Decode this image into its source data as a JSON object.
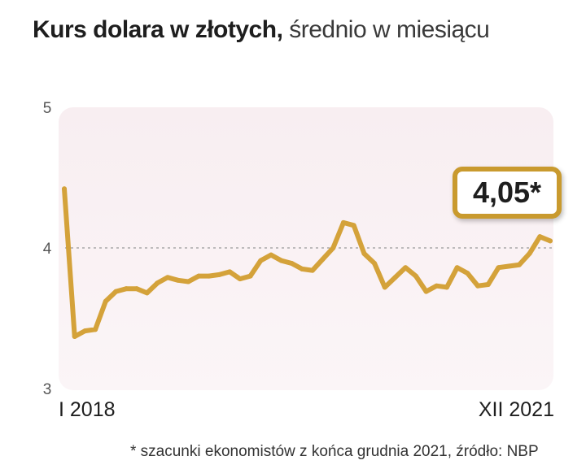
{
  "title": {
    "bold": "Kurs dolara w złotych,",
    "light": "średnio w miesiącu"
  },
  "callout": "4,05*",
  "footnote": "* szacunki ekonomistów z końca grudnia 2021, źródło: NBP",
  "colors": {
    "line": "#d4a23a",
    "plot_bg": "#f9f1f3",
    "badge_border": "#c99a2e"
  },
  "chart_data": {
    "type": "line",
    "title": "Kurs dolara w złotych, średnio w miesiącu",
    "xlabel": "",
    "ylabel": "",
    "ylim": [
      3,
      5
    ],
    "yticks": [
      "3",
      "4",
      "5"
    ],
    "xtick_labels": [
      "I 2018",
      "XII 2021"
    ],
    "reference_line": 4,
    "grid": false,
    "x": [
      "2018-01",
      "2018-02",
      "2018-03",
      "2018-04",
      "2018-05",
      "2018-06",
      "2018-07",
      "2018-08",
      "2018-09",
      "2018-10",
      "2018-11",
      "2018-12",
      "2019-01",
      "2019-02",
      "2019-03",
      "2019-04",
      "2019-05",
      "2019-06",
      "2019-07",
      "2019-08",
      "2019-09",
      "2019-10",
      "2019-11",
      "2019-12",
      "2020-01",
      "2020-02",
      "2020-03",
      "2020-04",
      "2020-05",
      "2020-06",
      "2020-07",
      "2020-08",
      "2020-09",
      "2020-10",
      "2020-11",
      "2020-12",
      "2021-01",
      "2021-02",
      "2021-03",
      "2021-04",
      "2021-05",
      "2021-06",
      "2021-07",
      "2021-08",
      "2021-09",
      "2021-10",
      "2021-11",
      "2021-12"
    ],
    "series": [
      {
        "values": [
          4.42,
          3.37,
          3.41,
          3.42,
          3.62,
          3.69,
          3.71,
          3.71,
          3.68,
          3.75,
          3.79,
          3.77,
          3.76,
          3.8,
          3.8,
          3.81,
          3.83,
          3.78,
          3.8,
          3.91,
          3.95,
          3.91,
          3.89,
          3.85,
          3.84,
          3.92,
          4.0,
          4.18,
          4.16,
          3.96,
          3.89,
          3.72,
          3.79,
          3.86,
          3.8,
          3.69,
          3.73,
          3.72,
          3.86,
          3.82,
          3.73,
          3.74,
          3.86,
          3.87,
          3.88,
          3.96,
          4.08,
          4.05
        ]
      }
    ]
  }
}
